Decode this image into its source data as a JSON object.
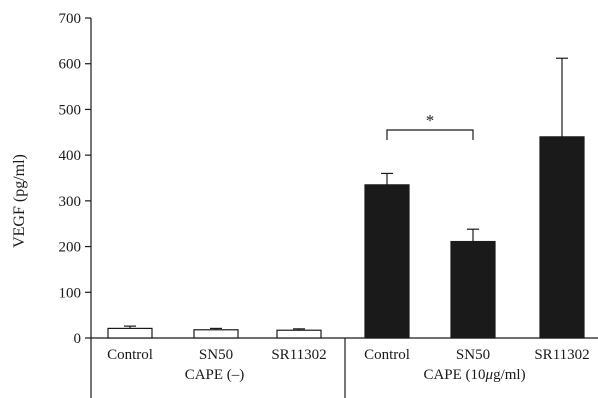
{
  "chart_data": {
    "type": "bar",
    "ylabel": "VEGF (pg/ml)",
    "xlabel": "",
    "ylim": [
      0,
      700
    ],
    "yticks": [
      0,
      100,
      200,
      300,
      400,
      500,
      600,
      700
    ],
    "grid": false,
    "categories": [
      "Control",
      "SN50",
      "SR11302",
      "Control",
      "SN50",
      "SR11302"
    ],
    "groups": [
      {
        "label_prefix": "CAPE (",
        "label_mu": "",
        "label_suffix": "–)",
        "indices": [
          0,
          1,
          2
        ]
      },
      {
        "label_prefix": "CAPE (10",
        "label_mu": "μ",
        "label_suffix": "g/ml)",
        "indices": [
          3,
          4,
          5
        ]
      }
    ],
    "values": [
      21,
      18,
      17,
      335,
      211,
      440
    ],
    "errors": [
      5,
      3,
      3,
      25,
      27,
      172
    ],
    "fills": [
      "#ffffff",
      "#ffffff",
      "#ffffff",
      "#1a1a1a",
      "#1a1a1a",
      "#1a1a1a"
    ],
    "annotations": [
      {
        "text": "*",
        "from": 3,
        "to": 4,
        "y": 455
      }
    ]
  }
}
